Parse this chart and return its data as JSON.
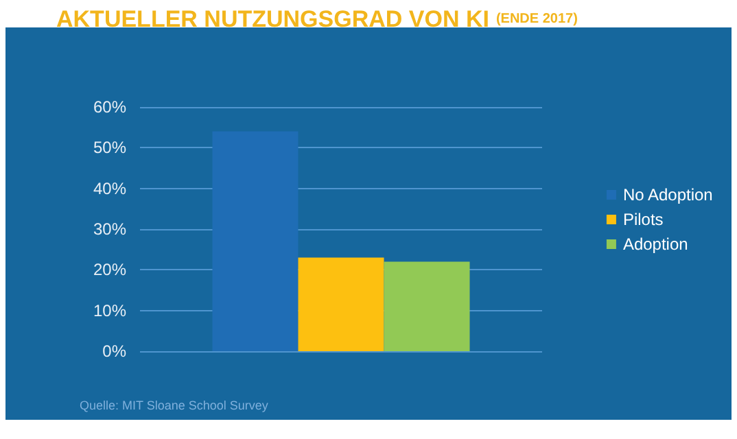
{
  "chart_data": {
    "type": "bar",
    "title": "AKTUELLER NUTZUNGSGRAD VON KI",
    "subtitle": "(ENDE 2017)",
    "categories": [
      null
    ],
    "series": [
      {
        "name": "No Adoption",
        "color": "#1f6db5",
        "values": [
          54
        ]
      },
      {
        "name": "Pilots",
        "color": "#fdc010",
        "values": [
          23
        ]
      },
      {
        "name": "Adoption",
        "color": "#92c955",
        "values": [
          22
        ]
      }
    ],
    "ylim": [
      0,
      60
    ],
    "yticks": [
      {
        "value": 0,
        "label": "0%"
      },
      {
        "value": 10,
        "label": "10%"
      },
      {
        "value": 20,
        "label": "20%"
      },
      {
        "value": 30,
        "label": "30%"
      },
      {
        "value": 40,
        "label": "40%"
      },
      {
        "value": 50,
        "label": "50%"
      },
      {
        "value": 60,
        "label": "60%"
      }
    ],
    "grid": "y",
    "legend": "right",
    "annotations": [
      "Quelle: MIT Sloane School Survey"
    ]
  }
}
